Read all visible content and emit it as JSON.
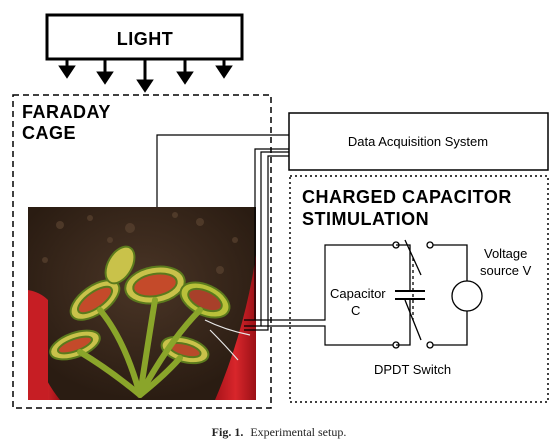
{
  "light": {
    "label": "LIGHT"
  },
  "faraday": {
    "line1": "FARADAY",
    "line2": "CAGE"
  },
  "daq": {
    "label": "Data Acquisition System"
  },
  "stimulation": {
    "line1": "CHARGED CAPACITOR",
    "line2": "STIMULATION"
  },
  "capacitor": {
    "line1": "Capacitor",
    "line2": "C"
  },
  "voltage": {
    "line1": "Voltage",
    "line2": "source V"
  },
  "switch": {
    "label": "DPDT Switch"
  },
  "caption": {
    "prefix": "Fig. 1.",
    "text": "Experimental setup."
  }
}
